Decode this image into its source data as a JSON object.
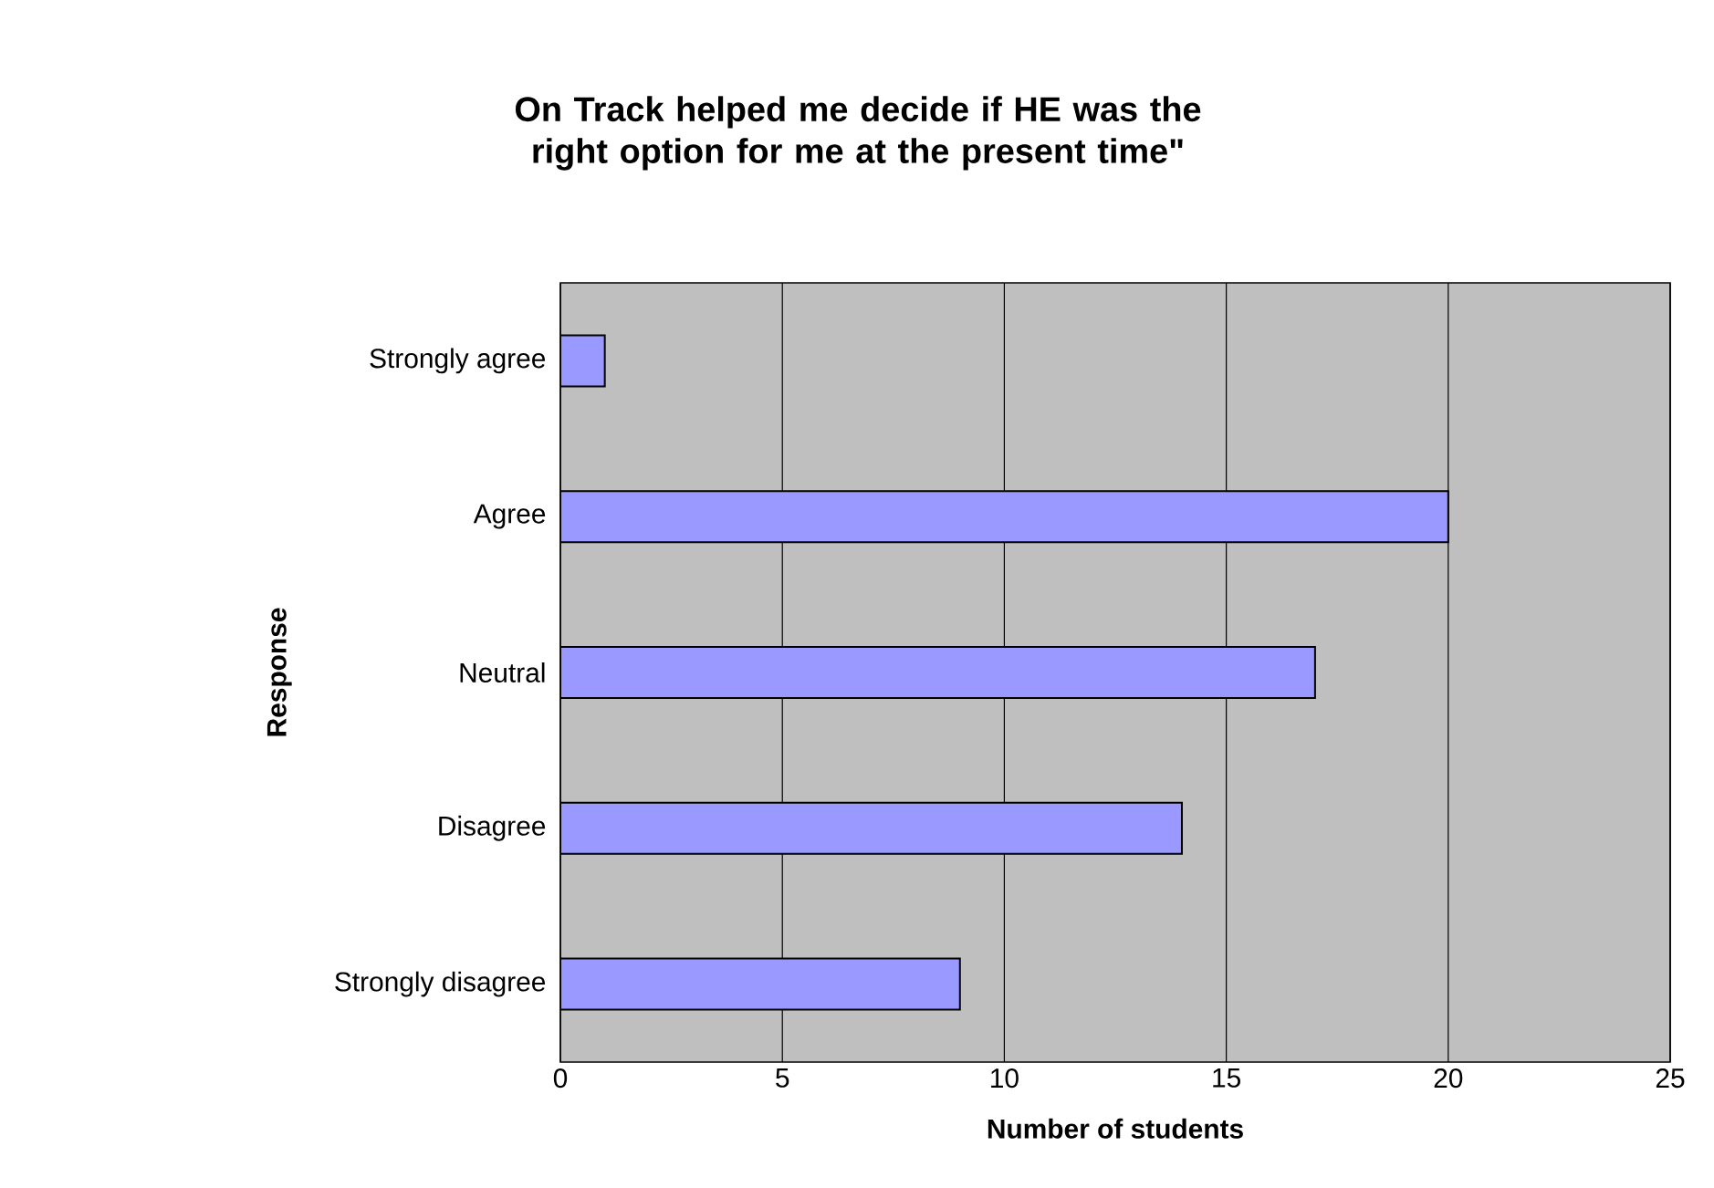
{
  "chart_data": {
    "type": "bar",
    "orientation": "horizontal",
    "title": "On Track helped me decide if HE was the right option for me at the present time\"",
    "xlabel": "Number of students",
    "ylabel": "Response",
    "categories": [
      "Strongly agree",
      "Agree",
      "Neutral",
      "Disagree",
      "Strongly disagree"
    ],
    "values": [
      1,
      20,
      17,
      14,
      9
    ],
    "color": "#9999ff",
    "xlim": [
      0,
      25
    ],
    "xticks": [
      0,
      5,
      10,
      15,
      20,
      25
    ],
    "grid": "x"
  }
}
